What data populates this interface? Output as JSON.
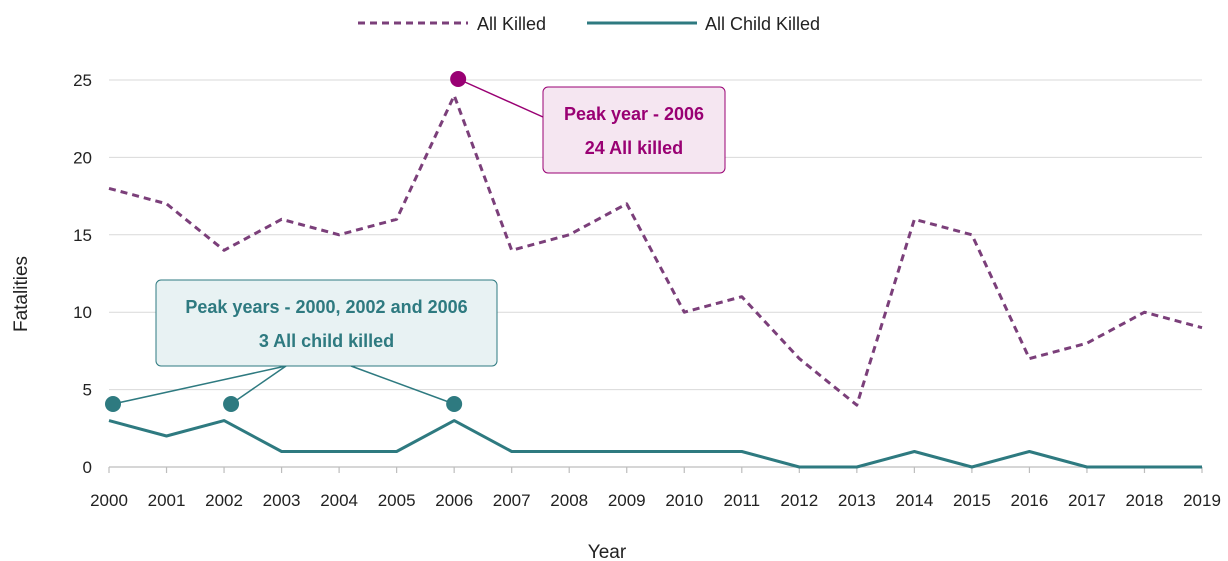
{
  "chart_data": {
    "type": "line",
    "title": "",
    "xlabel": "Year",
    "ylabel": "Fatalities",
    "x": [
      "2000",
      "2001",
      "2002",
      "2003",
      "2004",
      "2005",
      "2006",
      "2007",
      "2008",
      "2009",
      "2010",
      "2011",
      "2012",
      "2013",
      "2014",
      "2015",
      "2016",
      "2017",
      "2018",
      "2019"
    ],
    "ylim": [
      0,
      25
    ],
    "yticks": [
      0,
      5,
      10,
      15,
      20,
      25
    ],
    "grid": true,
    "legend_position": "top",
    "series": [
      {
        "name": "All Killed",
        "style": "dashed",
        "color": "#7b3f7a",
        "values": [
          18,
          17,
          14,
          16,
          15,
          16,
          24,
          14,
          15,
          17,
          10,
          11,
          7,
          4,
          16,
          15,
          7,
          8,
          10,
          9
        ]
      },
      {
        "name": "All Child Killed",
        "style": "solid",
        "color": "#2e7a80",
        "values": [
          3,
          2,
          3,
          1,
          1,
          1,
          3,
          1,
          1,
          1,
          1,
          1,
          0,
          0,
          1,
          0,
          1,
          0,
          0,
          0
        ]
      }
    ],
    "annotations": [
      {
        "series": "All Killed",
        "color": "#990073",
        "fill": "#f5e6f1",
        "lines": [
          "Peak year - 2006",
          "24 All killed"
        ],
        "points": [
          "2006"
        ]
      },
      {
        "series": "All Child Killed",
        "color": "#2e7a80",
        "fill": "#e8f2f3",
        "lines": [
          "Peak years - 2000, 2002 and 2006",
          "3 All child killed"
        ],
        "points": [
          "2000",
          "2002",
          "2006"
        ]
      }
    ]
  }
}
